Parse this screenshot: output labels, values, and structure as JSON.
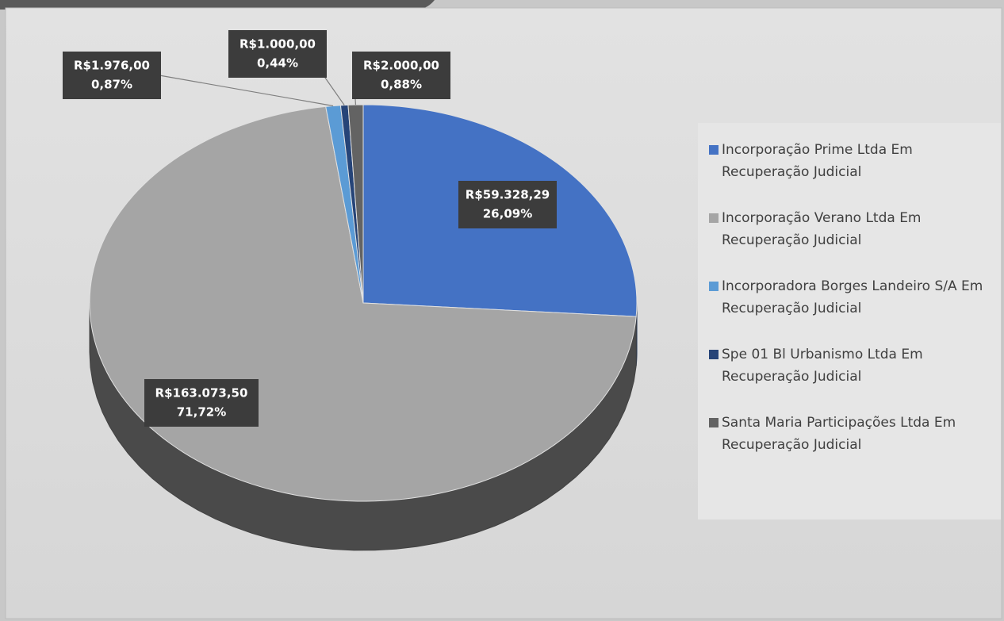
{
  "chart_data": {
    "type": "pie",
    "categories": [
      "Incorporação Prime Ltda Em Recuperação Judicial",
      "Incorporação Verano Ltda Em Recuperação Judicial",
      "Incorporadora Borges Landeiro S/A Em Recuperação Judicial",
      "Spe 01 Bl Urbanismo Ltda Em Recuperação Judicial",
      "Santa Maria Participações Ltda Em Recuperação Judicial"
    ],
    "values": [
      59328.29,
      163073.5,
      1976.0,
      1000.0,
      2000.0
    ],
    "value_labels": [
      "R$59.328,29",
      "R$163.073,50",
      "R$1.976,00",
      "R$1.000,00",
      "R$2.000,00"
    ],
    "percentages": [
      26.09,
      71.72,
      0.87,
      0.44,
      0.88
    ],
    "percentage_labels": [
      "26,09%",
      "71,72%",
      "0,87%",
      "0,44%",
      "0,88%"
    ],
    "colors": [
      "#4472c4",
      "#a5a5a5",
      "#5b9bd5",
      "#264478",
      "#636363"
    ],
    "legend": "right"
  }
}
